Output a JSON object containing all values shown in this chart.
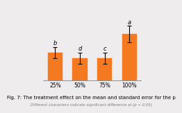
{
  "categories": [
    "25%",
    "50%",
    "75%",
    "100%"
  ],
  "values": [
    7.62,
    7.58,
    7.58,
    7.75
  ],
  "errors": [
    0.04,
    0.04,
    0.04,
    0.06
  ],
  "letters": [
    "b",
    "d",
    "c",
    "a"
  ],
  "bar_color": "#F47920",
  "edge_color": "#F47920",
  "background_color": "#eeecec",
  "title": "Fig. 7: The treatment effect on the mean and standard error for the p",
  "subtitle": "Different characters indicate significant difference at (p < 0.05)",
  "ylim_min": 7.42,
  "ylim_max": 7.95,
  "title_fontsize": 5.0,
  "subtitle_fontsize": 4.0,
  "tick_fontsize": 5.5,
  "letter_fontsize": 6.0
}
